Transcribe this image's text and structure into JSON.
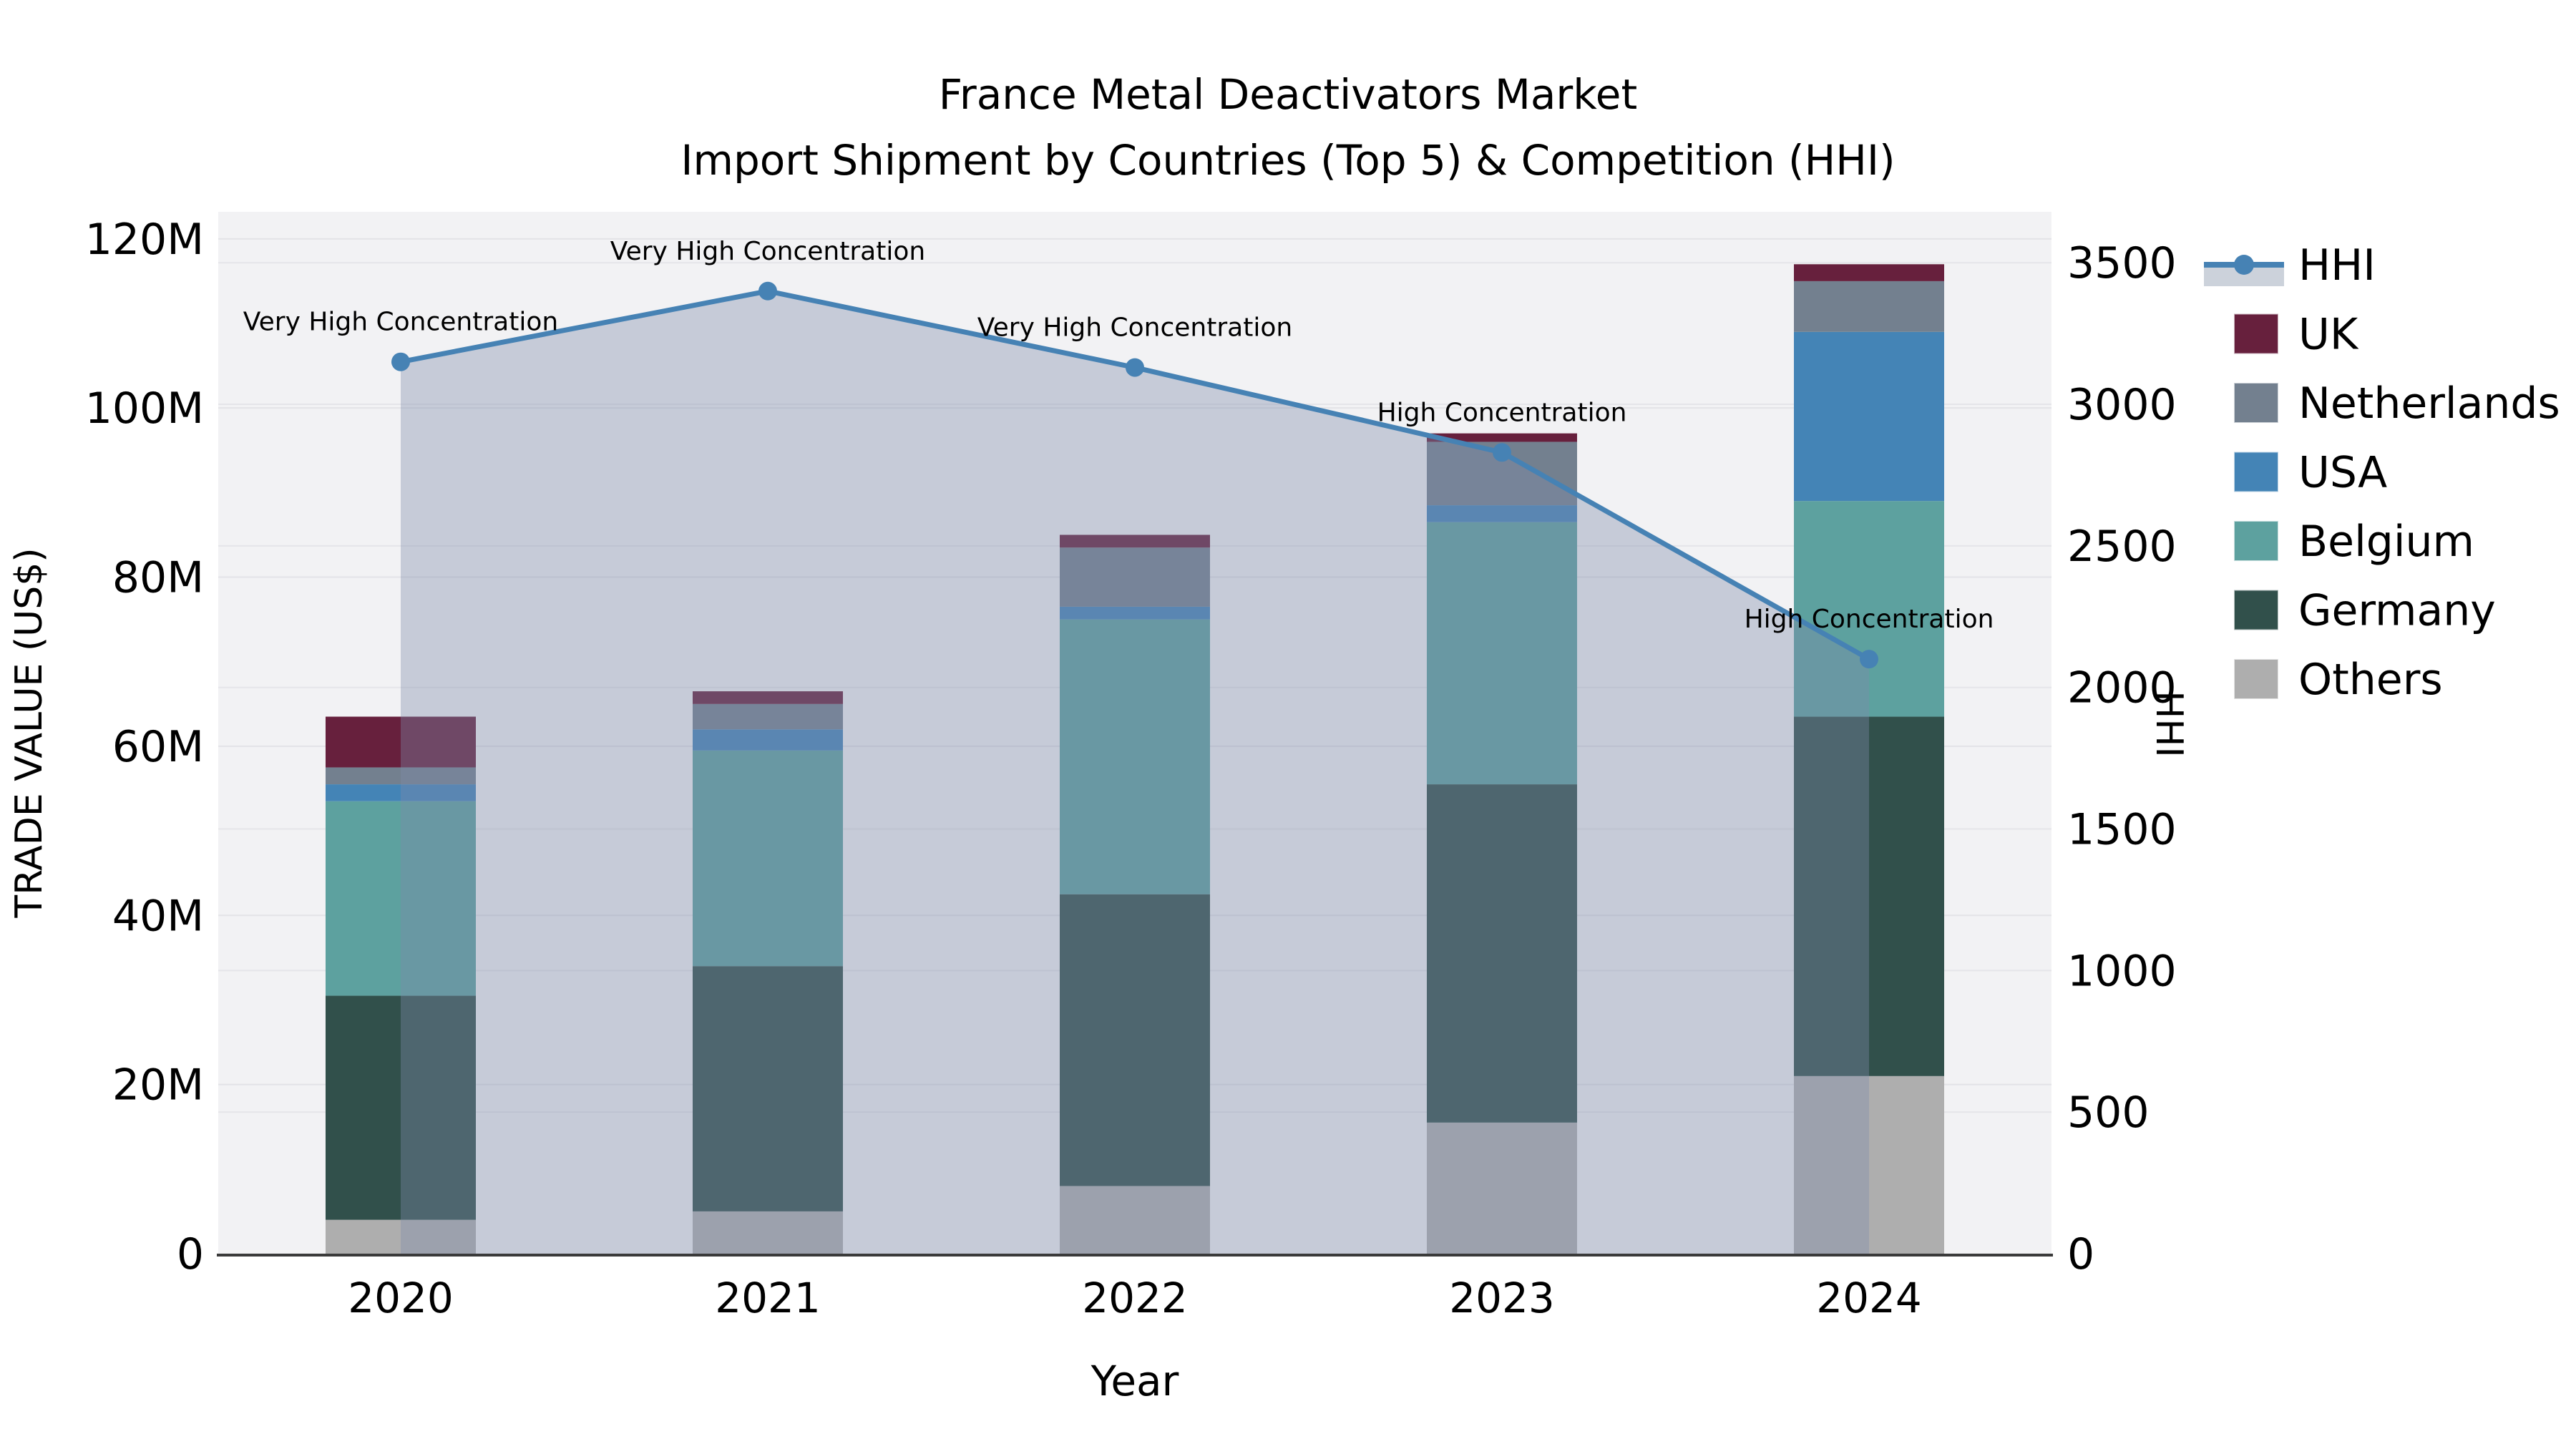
{
  "title": {
    "line1": "France Metal Deactivators Market",
    "line2": "Import Shipment by Countries (Top 5) & Competition (HHI)"
  },
  "axes": {
    "x_title": "Year",
    "left_title": "TRADE VALUE (US$)",
    "right_title": "HHI",
    "left_ticks": [
      {
        "value": 0,
        "label": "0"
      },
      {
        "value": 20,
        "label": "20M"
      },
      {
        "value": 40,
        "label": "40M"
      },
      {
        "value": 60,
        "label": "60M"
      },
      {
        "value": 80,
        "label": "80M"
      },
      {
        "value": 100,
        "label": "100M"
      },
      {
        "value": 120,
        "label": "120M"
      }
    ],
    "right_ticks": [
      {
        "value": 0,
        "label": "0"
      },
      {
        "value": 500,
        "label": "500"
      },
      {
        "value": 1000,
        "label": "1000"
      },
      {
        "value": 1500,
        "label": "1500"
      },
      {
        "value": 2000,
        "label": "2000"
      },
      {
        "value": 2500,
        "label": "2500"
      },
      {
        "value": 3000,
        "label": "3000"
      },
      {
        "value": 3500,
        "label": "3500"
      }
    ]
  },
  "chart_data": {
    "type": "stacked-bar+line",
    "title": "France Metal Deactivators Market — Import Shipment by Countries (Top 5) & Competition (HHI)",
    "xlabel": "Year",
    "ylabel_left": "TRADE VALUE (US$)",
    "ylabel_right": "HHI",
    "categories": [
      "2020",
      "2021",
      "2022",
      "2023",
      "2024"
    ],
    "bar_value_unit": "million US$",
    "series": [
      {
        "name": "Others",
        "color": "#aeaeae",
        "values": [
          4,
          5,
          8,
          15.5,
          21
        ]
      },
      {
        "name": "Germany",
        "color": "#31504b",
        "values": [
          26.5,
          29,
          34.5,
          40,
          42.5
        ]
      },
      {
        "name": "Belgium",
        "color": "#5da19f",
        "values": [
          23,
          25.5,
          32.5,
          31,
          25.5
        ]
      },
      {
        "name": "USA",
        "color": "#4484b6",
        "values": [
          2,
          2.5,
          1.5,
          2,
          20
        ]
      },
      {
        "name": "Netherlands",
        "color": "#73808f",
        "values": [
          2,
          3,
          7,
          7.5,
          6
        ]
      },
      {
        "name": "UK",
        "color": "#67203d",
        "values": [
          6,
          1.5,
          1.5,
          1,
          2
        ]
      }
    ],
    "bar_totals": [
      63.5,
      66.5,
      85,
      97,
      117
    ],
    "line_series": {
      "name": "HHI",
      "color": "#4682b4",
      "area_fill": "rgba(125,140,170,0.38)",
      "values": [
        3150,
        3400,
        3130,
        2830,
        2100
      ]
    },
    "annotations": [
      {
        "x": "2020",
        "text": "Very High Concentration"
      },
      {
        "x": "2021",
        "text": "Very High Concentration"
      },
      {
        "x": "2022",
        "text": "Very High Concentration"
      },
      {
        "x": "2023",
        "text": "High Concentration"
      },
      {
        "x": "2024",
        "text": "High Concentration"
      }
    ],
    "ylim_left": [
      0,
      123.2
    ],
    "ylim_right": [
      0,
      3680
    ],
    "grid": true,
    "legend_position": "right-outside",
    "plot_bg_color": "#f2f2f4",
    "grid_color": "#e3e3e7"
  },
  "legend": {
    "items": [
      {
        "label": "HHI",
        "type": "line"
      },
      {
        "label": "UK",
        "type": "swatch"
      },
      {
        "label": "Netherlands",
        "type": "swatch"
      },
      {
        "label": "USA",
        "type": "swatch"
      },
      {
        "label": "Belgium",
        "type": "swatch"
      },
      {
        "label": "Germany",
        "type": "swatch"
      },
      {
        "label": "Others",
        "type": "swatch"
      }
    ]
  }
}
